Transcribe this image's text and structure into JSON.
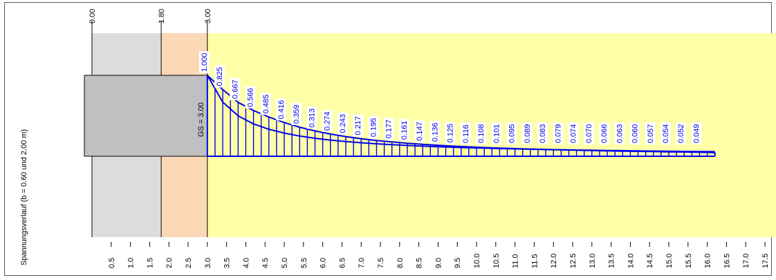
{
  "chart_data": {
    "type": "line",
    "ylabel": "Spannungsverlauf (b = 0.60 und 2.00 m)",
    "ylabel_parts": [
      "0.60",
      "2.00 m"
    ],
    "ylabel_sep": "und",
    "boundaries": [
      "0.00",
      "1.80",
      "3.00"
    ],
    "gs_label": "GS = 3.00",
    "x_ticks": [
      "0.5",
      "1.0",
      "1.5",
      "2.0",
      "2.5",
      "3.0",
      "3.5",
      "4.0",
      "4.5",
      "5.0",
      "5.5",
      "6.0",
      "6.5",
      "7.0",
      "7.5",
      "8.0",
      "8.5",
      "9.0",
      "9.5",
      "10.0",
      "10.5",
      "11.0",
      "11.5",
      "12.0",
      "12.5",
      "13.0",
      "13.5",
      "14.0",
      "14.5",
      "15.0",
      "15.5",
      "16.0",
      "16.5",
      "17.0",
      "17.5"
    ],
    "x_min": 0.0,
    "x_max": 17.9,
    "depth_start": 3.0,
    "depth_end": 16.2,
    "series": [
      {
        "x": [
          3.0,
          3.4,
          3.8,
          4.2,
          4.6,
          5.0,
          5.4,
          5.8,
          6.2,
          6.6,
          7.0,
          7.4,
          7.8,
          8.2,
          8.6,
          9.0,
          9.4,
          9.8,
          10.2,
          10.6,
          11.0,
          11.4,
          11.8,
          12.2,
          12.6,
          13.0,
          13.4,
          13.8,
          14.2,
          14.6,
          15.0,
          15.4,
          15.8
        ],
        "values": [
          1.0,
          0.825,
          0.667,
          0.566,
          0.485,
          0.416,
          0.359,
          0.313,
          0.274,
          0.243,
          0.217,
          0.195,
          0.177,
          0.161,
          0.147,
          0.136,
          0.125,
          0.116,
          0.108,
          0.101,
          0.095,
          0.089,
          0.083,
          0.079,
          0.074,
          0.07,
          0.066,
          0.063,
          0.06,
          0.057,
          0.054,
          0.052,
          0.049
        ],
        "labels": [
          "1.000",
          "0.825",
          "0.667",
          "0.566",
          "0.485",
          "0.416",
          "0.359",
          "0.313",
          "0.274",
          "0.243",
          "0.217",
          "0.195",
          "0.177",
          "0.161",
          "0.147",
          "0.136",
          "0.125",
          "0.116",
          "0.108",
          "0.101",
          "0.095",
          "0.089",
          "0.083",
          "0.079",
          "0.074",
          "0.070",
          "0.066",
          "0.063",
          "0.060",
          "0.057",
          "0.054",
          "0.052",
          "0.049"
        ]
      },
      {
        "x": [
          3.0,
          3.4,
          3.8,
          4.2,
          4.6,
          5.0,
          5.4,
          5.8,
          6.2,
          6.6,
          7.0,
          7.4,
          7.8,
          8.2,
          8.6,
          9.0,
          9.4,
          9.8,
          10.2,
          10.6,
          11.0,
          11.4,
          11.8,
          12.2,
          12.6,
          13.0,
          13.4,
          13.8,
          14.2,
          14.6,
          15.0,
          15.4,
          15.8,
          16.2
        ],
        "values": [
          1.0,
          0.67,
          0.5,
          0.4,
          0.333,
          0.286,
          0.25,
          0.222,
          0.2,
          0.182,
          0.167,
          0.154,
          0.143,
          0.133,
          0.125,
          0.118,
          0.111,
          0.105,
          0.1,
          0.095,
          0.091,
          0.087,
          0.083,
          0.08,
          0.077,
          0.074,
          0.071,
          0.069,
          0.067,
          0.064,
          0.062,
          0.06,
          0.058,
          0.056
        ]
      }
    ],
    "colors": {
      "soil_light_gray": "#dcdcdc",
      "soil_peach": "#fad7b5",
      "soil_yellow": "#ffffa8",
      "foundation": "#c0c0c0",
      "stress": "#0000ee"
    }
  }
}
